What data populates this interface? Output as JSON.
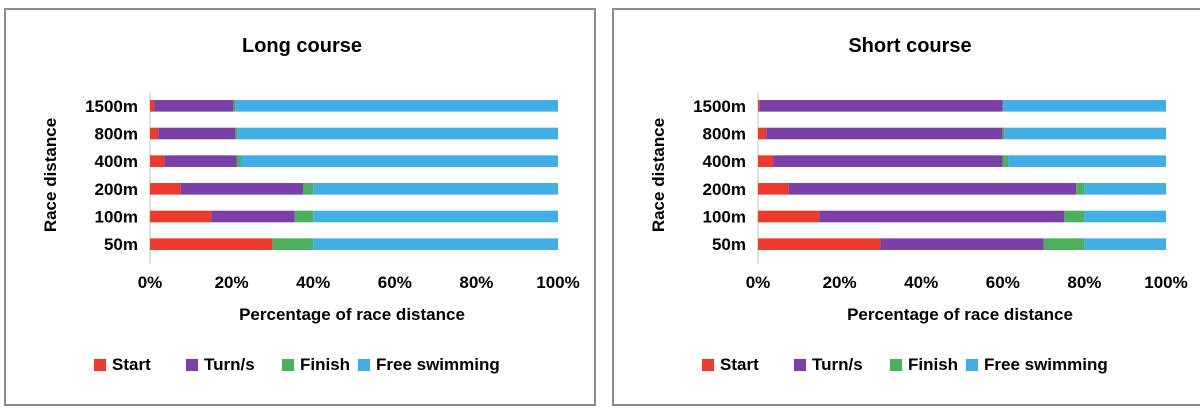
{
  "series_colors": {
    "Start": "#ee3a2b",
    "Turn/s": "#7b3fa8",
    "Finish": "#4caf5c",
    "Free swimming": "#42aee6"
  },
  "chart_data": [
    {
      "type": "bar",
      "orientation": "horizontal",
      "stacked": "percent",
      "title": "Long course",
      "xlabel": "Percentage of race distance",
      "ylabel": "Race distance",
      "categories": [
        "1500m",
        "800m",
        "400m",
        "200m",
        "100m",
        "50m"
      ],
      "xlim": [
        0,
        100
      ],
      "xticks": [
        "0%",
        "20%",
        "40%",
        "60%",
        "80%",
        "100%"
      ],
      "legend_position": "bottom",
      "series": [
        {
          "name": "Start",
          "values": [
            1,
            2,
            3.5,
            7.5,
            15,
            30
          ]
        },
        {
          "name": "Turn/s",
          "values": [
            19.5,
            19,
            17.8,
            30,
            20.5,
            0
          ]
        },
        {
          "name": "Finish",
          "values": [
            0.5,
            0.5,
            1,
            2.5,
            4.5,
            10
          ]
        },
        {
          "name": "Free swimming",
          "values": [
            79,
            78.5,
            77.7,
            60,
            60,
            60
          ]
        }
      ]
    },
    {
      "type": "bar",
      "orientation": "horizontal",
      "stacked": "percent",
      "title": "Short course",
      "xlabel": "Percentage of race distance",
      "ylabel": "Race distance",
      "categories": [
        "1500m",
        "800m",
        "400m",
        "200m",
        "100m",
        "50m"
      ],
      "xlim": [
        0,
        100
      ],
      "xticks": [
        "0%",
        "20%",
        "40%",
        "60%",
        "80%",
        "100%"
      ],
      "legend_position": "bottom",
      "series": [
        {
          "name": "Start",
          "values": [
            0.3,
            2,
            3.7,
            7.5,
            15,
            30
          ]
        },
        {
          "name": "Turn/s",
          "values": [
            59.7,
            58,
            56.3,
            70.5,
            60,
            40
          ]
        },
        {
          "name": "Finish",
          "values": [
            0.2,
            0.5,
            1.3,
            2,
            5,
            10
          ]
        },
        {
          "name": "Free swimming",
          "values": [
            39.8,
            39.5,
            38.7,
            20,
            20,
            20
          ]
        }
      ]
    }
  ]
}
